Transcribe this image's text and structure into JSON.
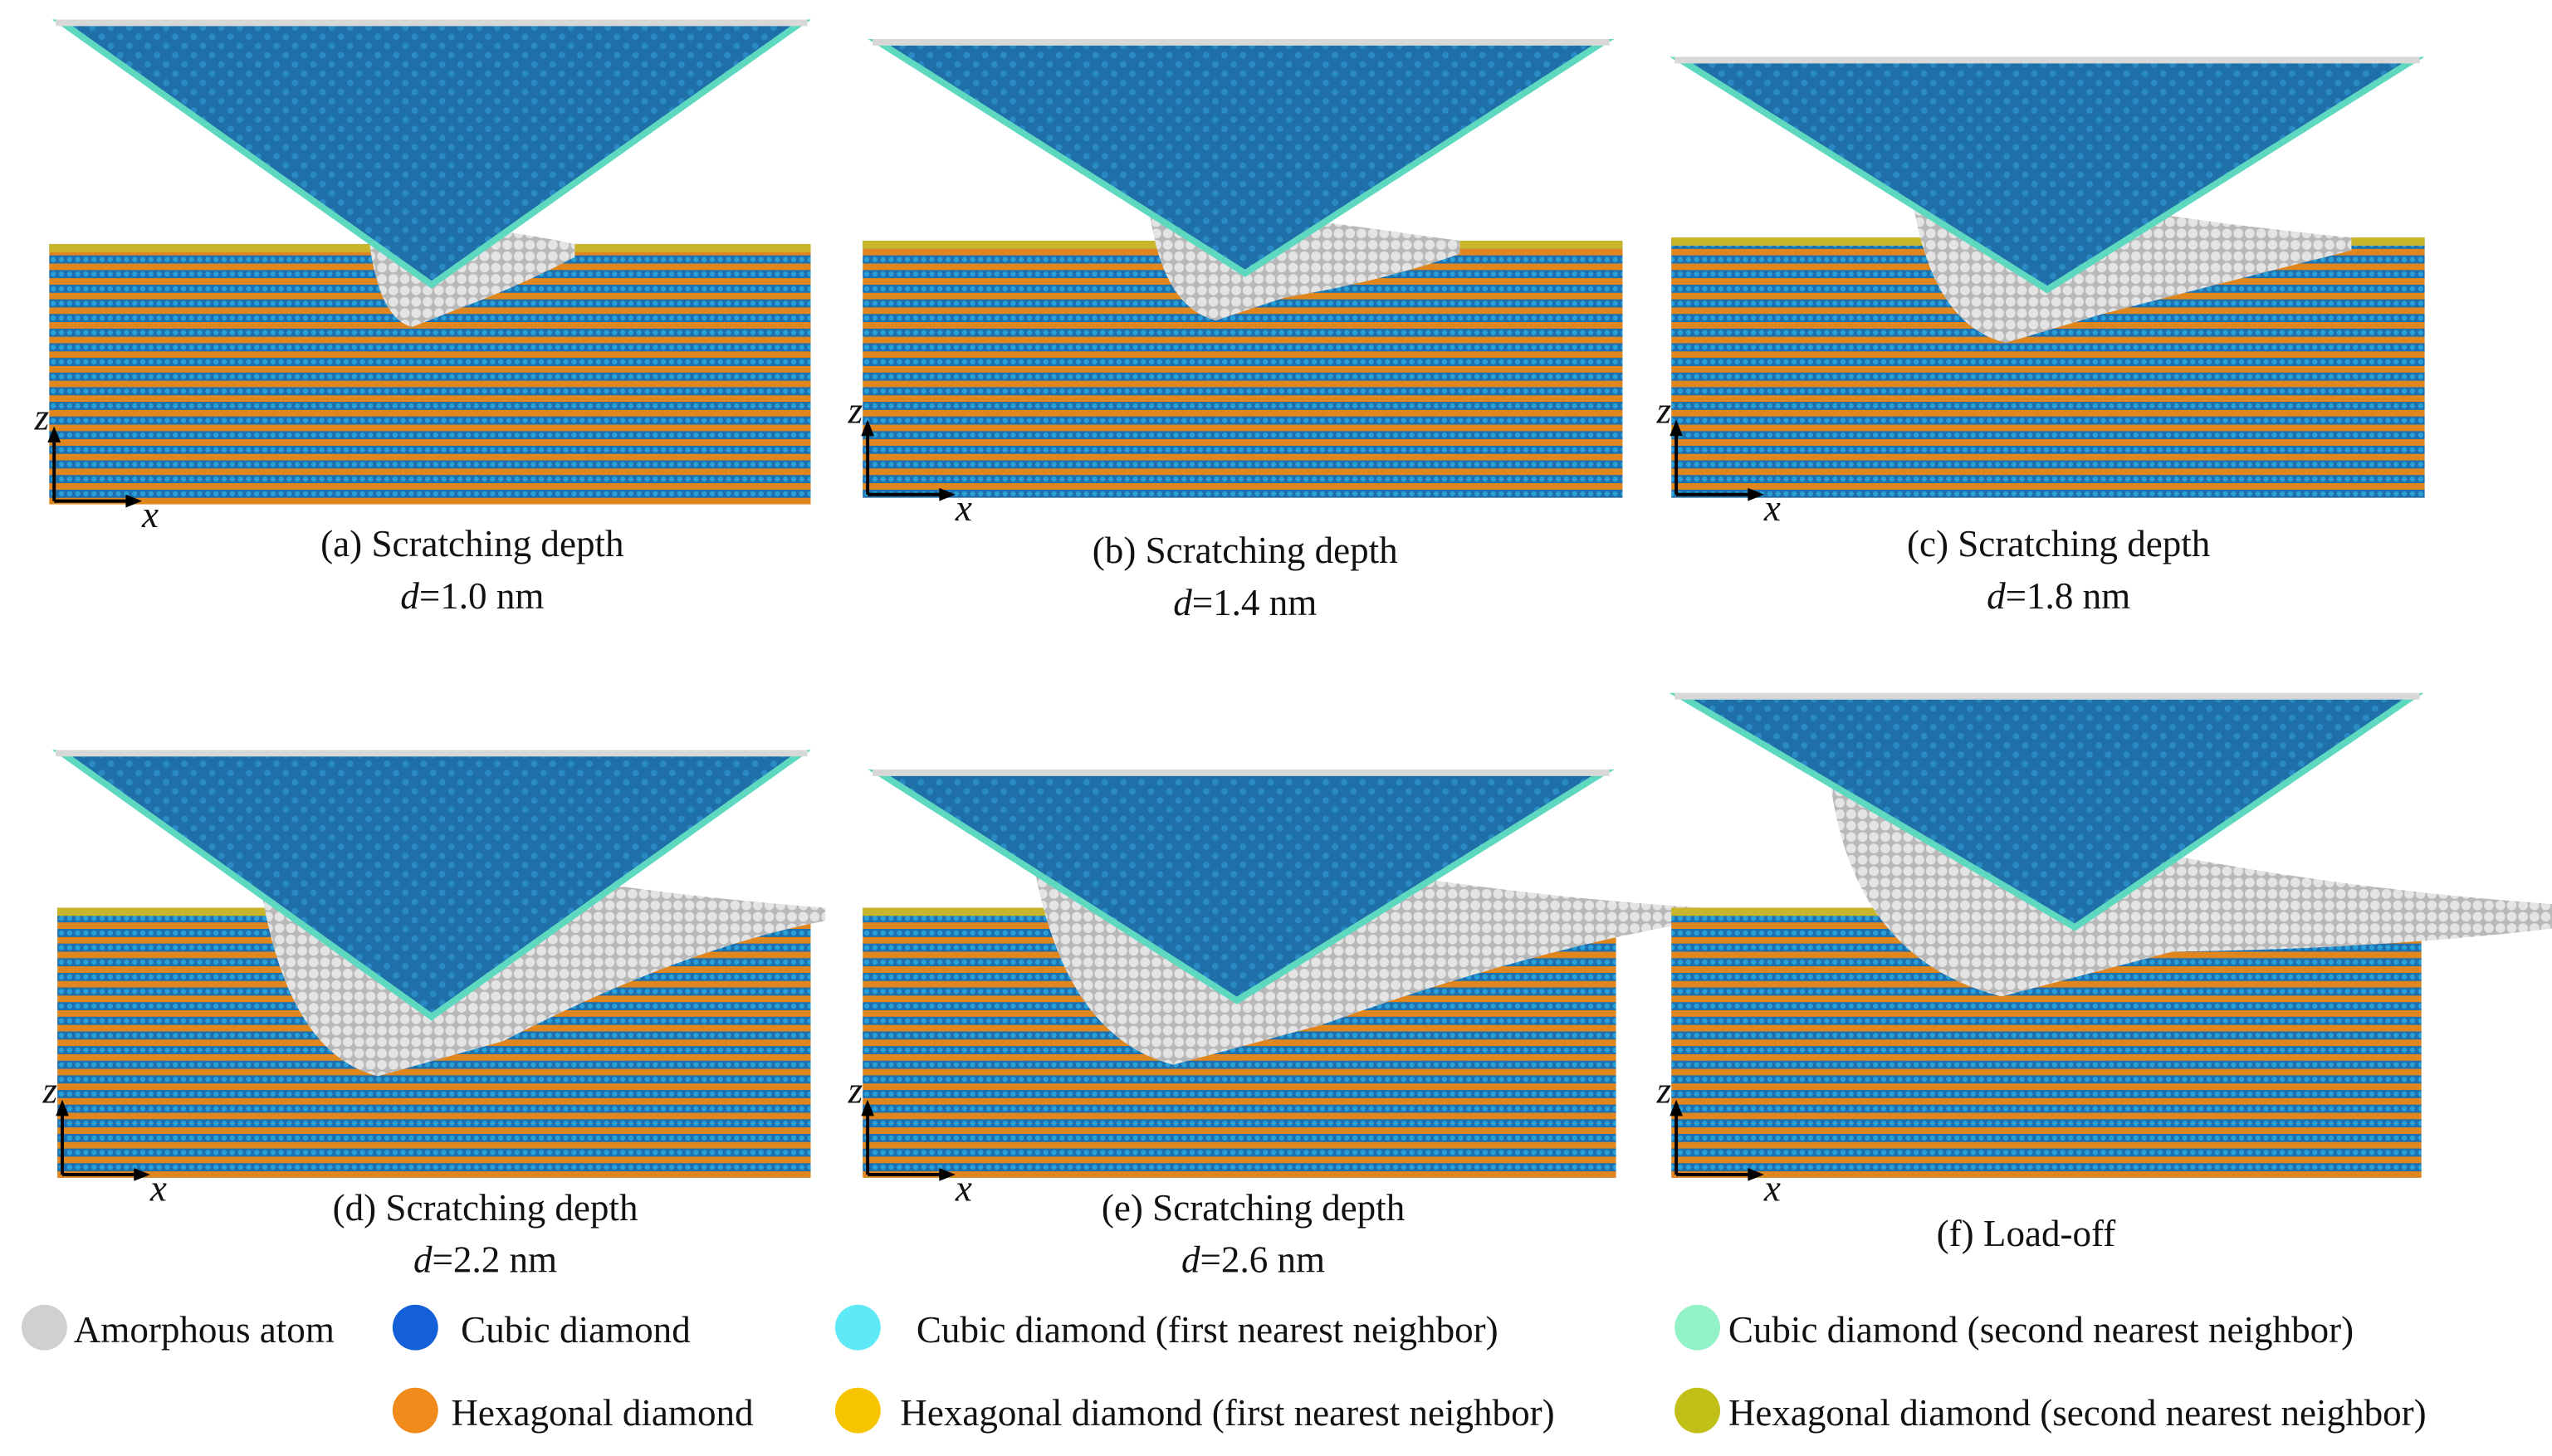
{
  "figure": {
    "axes": {
      "z": "z",
      "x": "x"
    },
    "panels": [
      {
        "caption": "(a) Scratching depth",
        "depth_symbol": "d",
        "depth_value": "=1.0 nm"
      },
      {
        "caption": "(b) Scratching depth",
        "depth_symbol": "d",
        "depth_value": "=1.4 nm"
      },
      {
        "caption": "(c) Scratching depth",
        "depth_symbol": "d",
        "depth_value": "=1.8 nm"
      },
      {
        "caption": "(d) Scratching depth",
        "depth_symbol": "d",
        "depth_value": "=2.2 nm"
      },
      {
        "caption": "(e) Scratching depth",
        "depth_symbol": "d",
        "depth_value": "=2.6 nm"
      },
      {
        "caption": "(f) Load-off"
      }
    ],
    "legend": [
      {
        "label": "Amorphous atom",
        "color": "#d0d0d0"
      },
      {
        "label": "Cubic diamond",
        "color": "#1460d8"
      },
      {
        "label": "Cubic diamond (first nearest neighbor)",
        "color": "#5fe8f5"
      },
      {
        "label": "Cubic diamond (second nearest neighbor)",
        "color": "#93f2c8"
      },
      {
        "label": "Hexagonal diamond",
        "color": "#f08a1a"
      },
      {
        "label": "Hexagonal diamond (first nearest neighbor)",
        "color": "#f7c400"
      },
      {
        "label": "Hexagonal diamond (second nearest neighbor)",
        "color": "#c0c018"
      }
    ]
  }
}
